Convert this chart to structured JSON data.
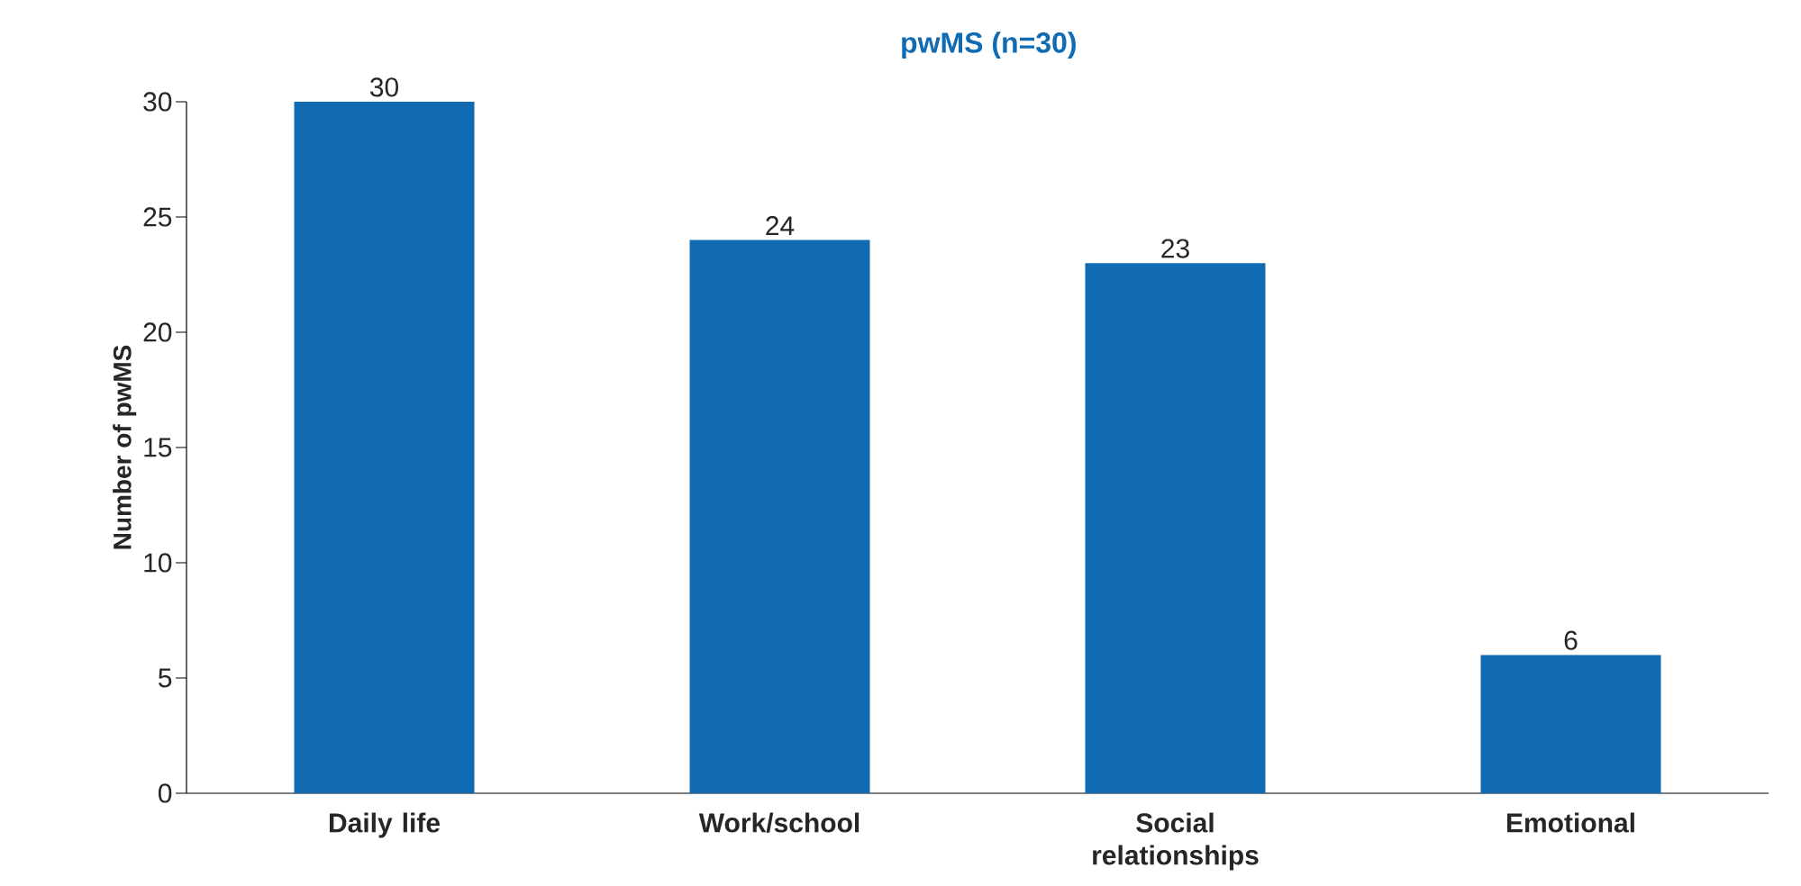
{
  "chart_data": {
    "type": "bar",
    "title": "pwMS (n=30)",
    "ylabel": "Number of pwMS",
    "categories": [
      "Daily life",
      "Work/school",
      "Social relationships",
      "Emotional"
    ],
    "values": [
      30,
      24,
      23,
      6
    ],
    "color": "#106bb2",
    "ylim": [
      0,
      30
    ],
    "yticks": [
      0,
      5,
      10,
      15,
      20,
      25,
      30
    ],
    "data_labels": true,
    "grid": false
  }
}
